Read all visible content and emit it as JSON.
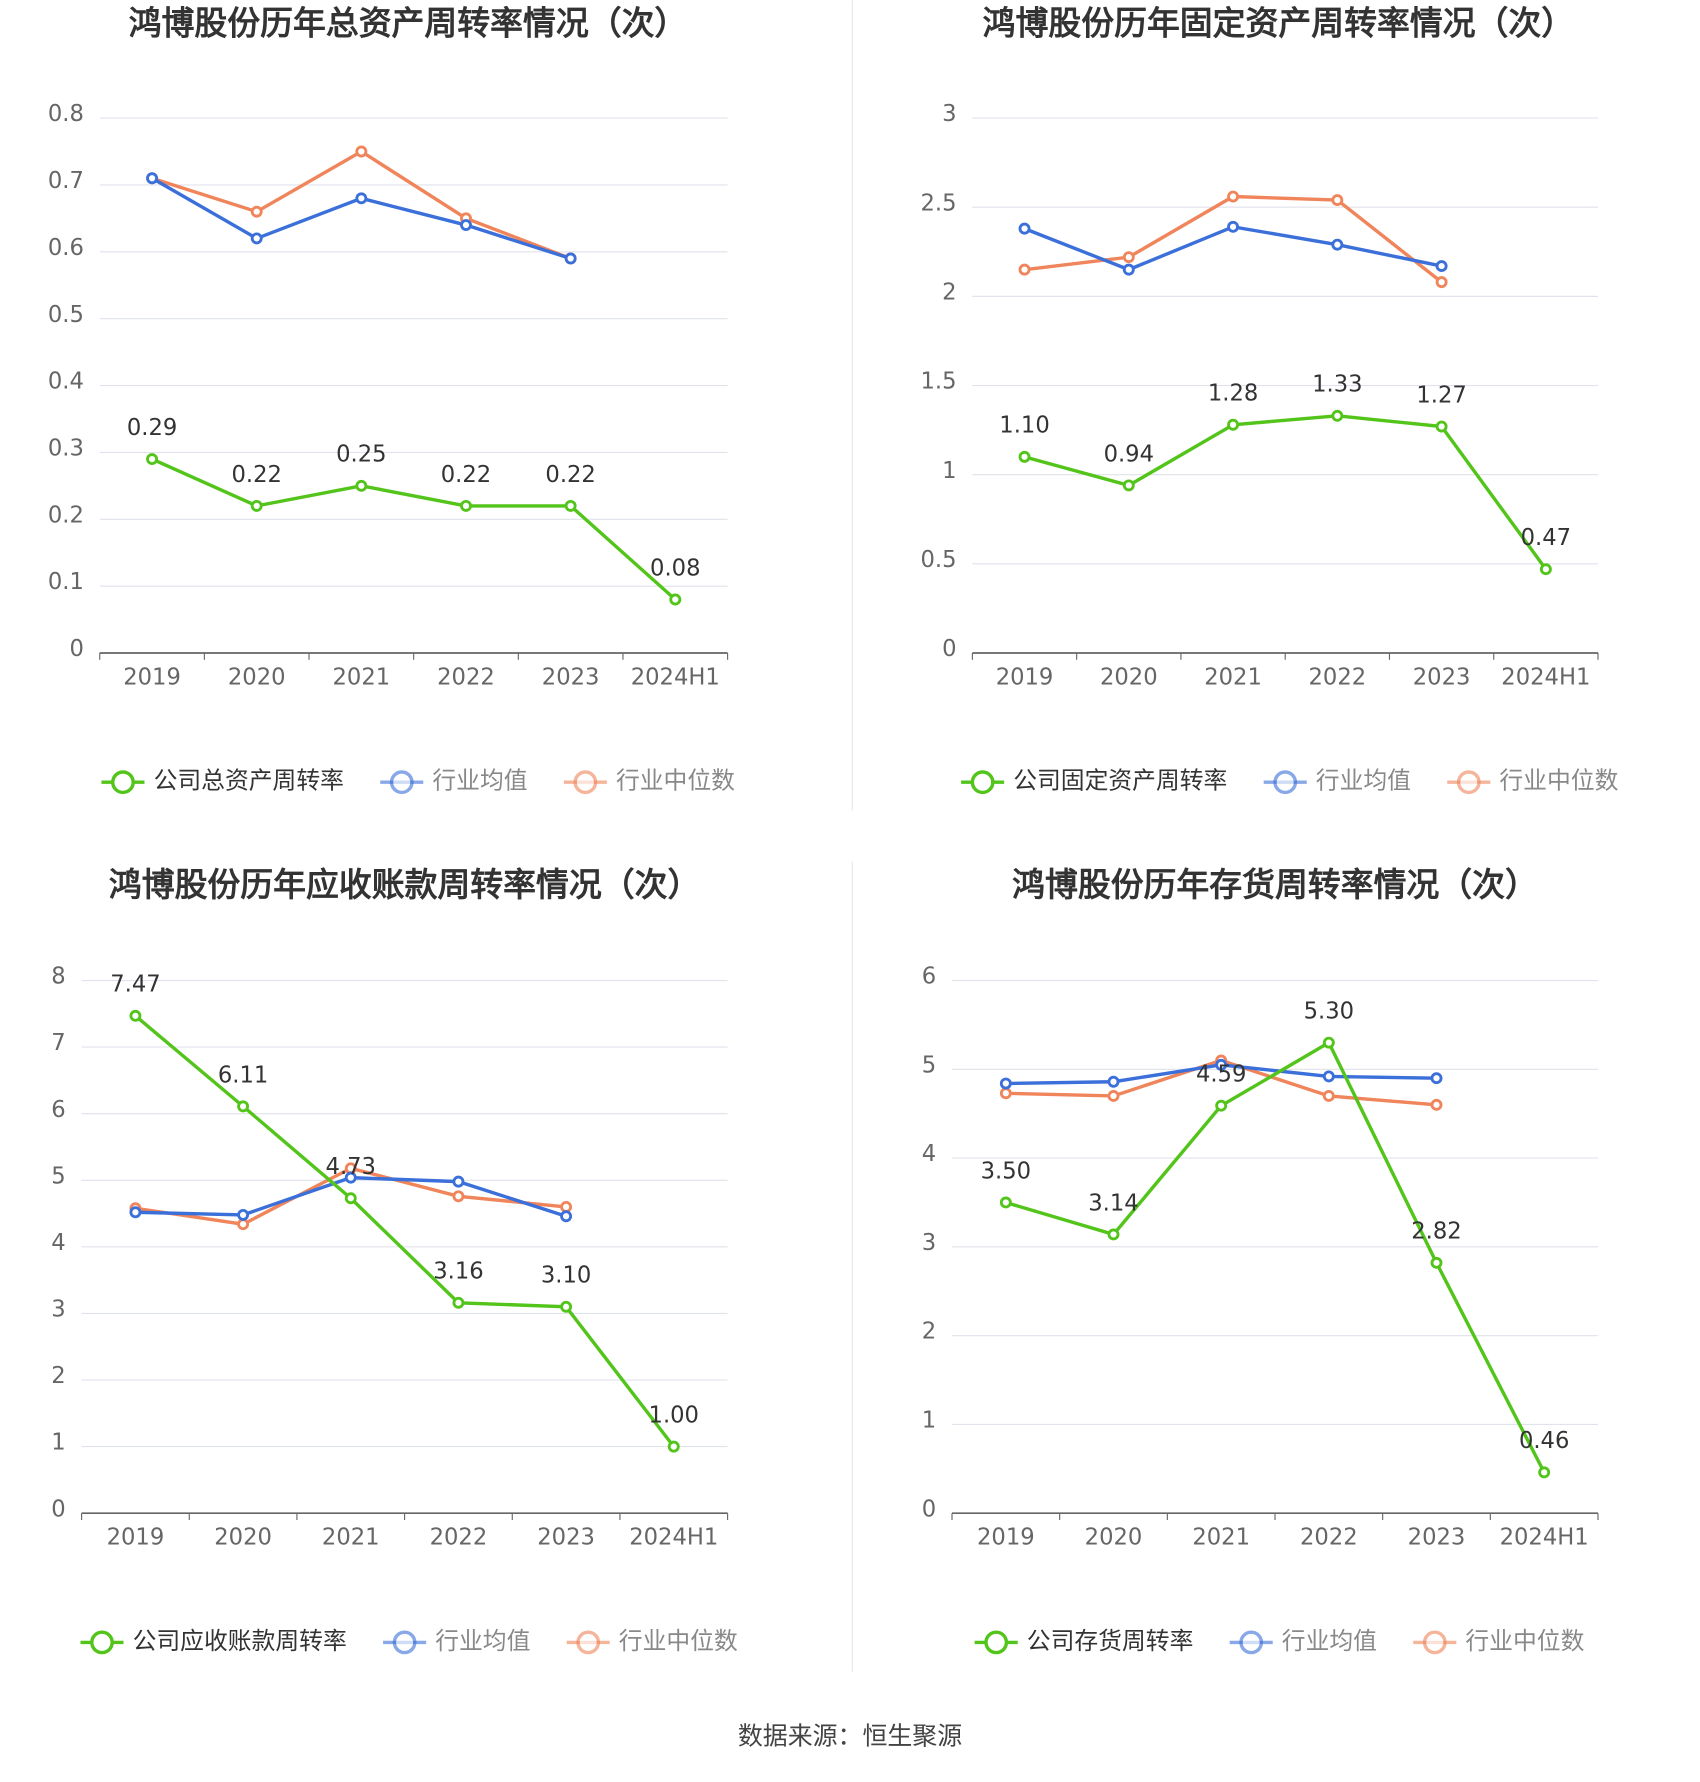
{
  "chart_data": [
    {
      "type": "line",
      "title": "鸿博股份历年总资产周转率情况（次）",
      "categories": [
        "2019",
        "2020",
        "2021",
        "2022",
        "2023",
        "2024H1"
      ],
      "series": [
        {
          "name": "公司总资产周转率",
          "color": "#52c41a",
          "values": [
            0.29,
            0.22,
            0.25,
            0.22,
            0.22,
            0.08
          ],
          "value_labels": [
            "0.29",
            "0.22",
            "0.25",
            "0.22",
            "0.22",
            "0.08"
          ]
        },
        {
          "name": "行业均值",
          "color": "#3b6fd9",
          "values": [
            0.71,
            0.62,
            0.68,
            0.64,
            0.59,
            null
          ]
        },
        {
          "name": "行业中位数",
          "color": "#f0845a",
          "values": [
            0.71,
            0.66,
            0.75,
            0.65,
            0.59,
            null
          ]
        }
      ],
      "ylim": [
        0,
        0.8
      ],
      "yticks": [
        0,
        0.1,
        0.2,
        0.3,
        0.4,
        0.5,
        0.6,
        0.7,
        0.8
      ],
      "grid": true,
      "legend": "bottom"
    },
    {
      "type": "line",
      "title": "鸿博股份历年固定资产周转率情况（次）",
      "categories": [
        "2019",
        "2020",
        "2021",
        "2022",
        "2023",
        "2024H1"
      ],
      "series": [
        {
          "name": "公司固定资产周转率",
          "color": "#52c41a",
          "values": [
            1.1,
            0.94,
            1.28,
            1.33,
            1.27,
            0.47
          ],
          "value_labels": [
            "1.10",
            "0.94",
            "1.28",
            "1.33",
            "1.27",
            "0.47"
          ]
        },
        {
          "name": "行业均值",
          "color": "#3b6fd9",
          "values": [
            2.38,
            2.15,
            2.39,
            2.29,
            2.17,
            null
          ]
        },
        {
          "name": "行业中位数",
          "color": "#f0845a",
          "values": [
            2.15,
            2.22,
            2.56,
            2.54,
            2.08,
            null
          ]
        }
      ],
      "ylim": [
        0,
        3
      ],
      "yticks": [
        0,
        0.5,
        1,
        1.5,
        2,
        2.5,
        3
      ],
      "grid": true,
      "legend": "bottom"
    },
    {
      "type": "line",
      "title": "鸿博股份历年应收账款周转率情况（次）",
      "categories": [
        "2019",
        "2020",
        "2021",
        "2022",
        "2023",
        "2024H1"
      ],
      "series": [
        {
          "name": "公司应收账款周转率",
          "color": "#52c41a",
          "values": [
            7.47,
            6.11,
            4.73,
            3.16,
            3.1,
            1.0
          ],
          "value_labels": [
            "7.47",
            "6.11",
            "4.73",
            "3.16",
            "3.10",
            "1.00"
          ]
        },
        {
          "name": "行业均值",
          "color": "#3b6fd9",
          "values": [
            4.52,
            4.48,
            5.04,
            4.98,
            4.46,
            null
          ]
        },
        {
          "name": "行业中位数",
          "color": "#f0845a",
          "values": [
            4.58,
            4.34,
            5.18,
            4.76,
            4.6,
            null
          ]
        }
      ],
      "ylim": [
        0,
        8
      ],
      "yticks": [
        0,
        1,
        2,
        3,
        4,
        5,
        6,
        7,
        8
      ],
      "grid": true,
      "legend": "bottom"
    },
    {
      "type": "line",
      "title": "鸿博股份历年存货周转率情况（次）",
      "categories": [
        "2019",
        "2020",
        "2021",
        "2022",
        "2023",
        "2024H1"
      ],
      "series": [
        {
          "name": "公司存货周转率",
          "color": "#52c41a",
          "values": [
            3.5,
            3.14,
            4.59,
            5.3,
            2.82,
            0.46
          ],
          "value_labels": [
            "3.50",
            "3.14",
            "4.59",
            "5.30",
            "2.82",
            "0.46"
          ]
        },
        {
          "name": "行业均值",
          "color": "#3b6fd9",
          "values": [
            4.84,
            4.86,
            5.05,
            4.92,
            4.9,
            null
          ]
        },
        {
          "name": "行业中位数",
          "color": "#f0845a",
          "values": [
            4.73,
            4.7,
            5.1,
            4.7,
            4.6,
            null
          ]
        }
      ],
      "ylim": [
        0,
        6
      ],
      "yticks": [
        0,
        1,
        2,
        3,
        4,
        5,
        6
      ],
      "grid": true,
      "legend": "bottom"
    }
  ],
  "source": "数据来源：恒生聚源"
}
